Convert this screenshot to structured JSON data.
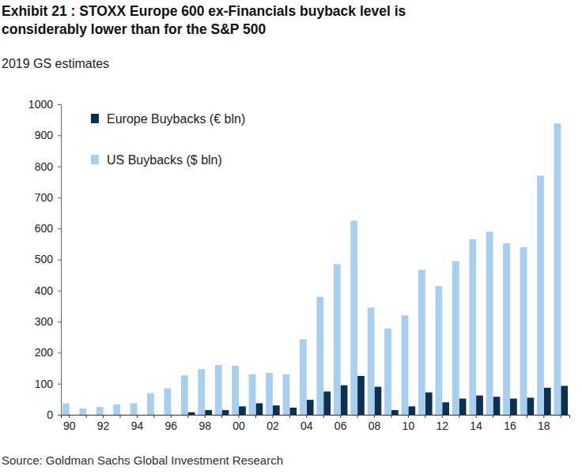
{
  "chart_data": {
    "type": "bar",
    "title": [
      "Exhibit 21 : STOXX Europe 600 ex-Financials buyback level is",
      "considerably lower than for the S&P 500"
    ],
    "subtitle": "2019 GS estimates",
    "source": "Source: Goldman Sachs Global Investment Research",
    "categories": [
      "90",
      null,
      "92",
      null,
      "94",
      null,
      "96",
      null,
      "98",
      null,
      "00",
      null,
      "02",
      null,
      "04",
      null,
      "06",
      null,
      "08",
      null,
      "10",
      null,
      "12",
      null,
      "14",
      null,
      "16",
      null,
      "18",
      null
    ],
    "series": [
      {
        "name": "Europe Buybacks (€ bln)",
        "color": "#0d2f52",
        "values": [
          0,
          0,
          0,
          0,
          0,
          0,
          0,
          8,
          15,
          15,
          27,
          37,
          30,
          23,
          48,
          75,
          95,
          125,
          90,
          15,
          27,
          72,
          40,
          52,
          62,
          58,
          52,
          55,
          87,
          93
        ]
      },
      {
        "name": "US Buybacks ($ bln)",
        "color": "#a8cfee",
        "values": [
          37,
          20,
          25,
          33,
          37,
          70,
          85,
          127,
          147,
          160,
          158,
          130,
          135,
          130,
          243,
          380,
          485,
          625,
          345,
          278,
          320,
          467,
          415,
          495,
          565,
          590,
          552,
          540,
          770,
          938
        ]
      }
    ],
    "ylim": [
      0,
      1000
    ],
    "yticks": [
      0,
      100,
      200,
      300,
      400,
      500,
      600,
      700,
      800,
      900,
      1000
    ],
    "grid": false,
    "legend": "top-left"
  }
}
